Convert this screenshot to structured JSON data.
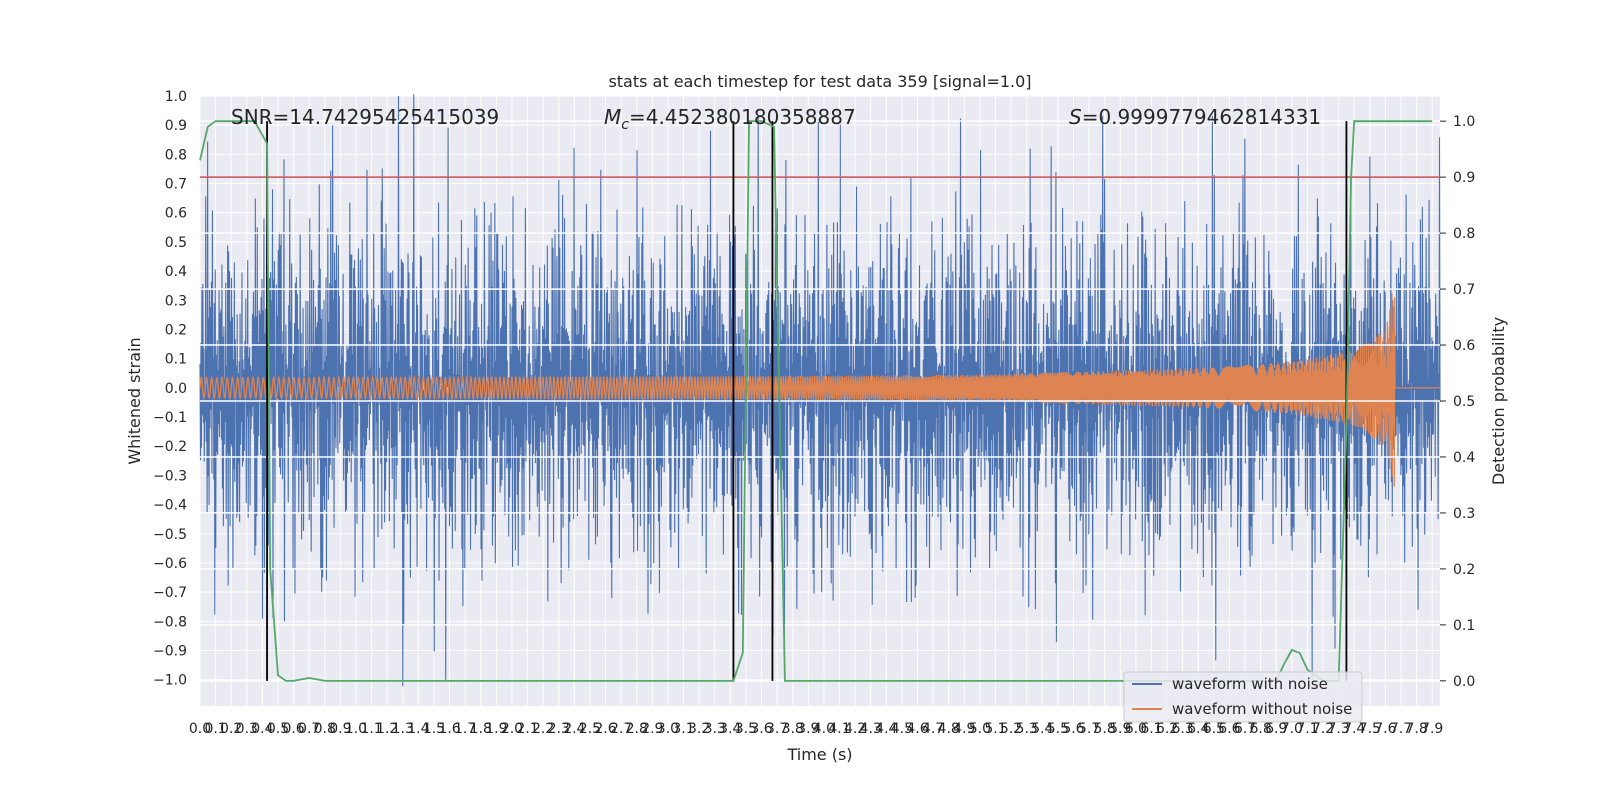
{
  "chart_data": {
    "type": "line",
    "title": "stats at each timestep for test data 359 [signal=1.0]",
    "xlabel": "Time (s)",
    "ylabel": "Whitened strain",
    "y2label": "Detection probability",
    "xlim": [
      0,
      7.95
    ],
    "ylim": [
      -1.09,
      1.0
    ],
    "y2lim": [
      -0.045,
      1.045
    ],
    "grid": true,
    "legend_position": "lower-right",
    "x_tick_labels": [
      "0.0",
      "0.1",
      "0.2",
      "0.3",
      "0.4",
      "0.5",
      "0.6",
      "0.7",
      "0.8",
      "0.9",
      "1.0",
      "1.1",
      "1.2",
      "1.3",
      "1.4",
      "1.5",
      "1.6",
      "1.7",
      "1.8",
      "1.9",
      "2.0",
      "2.1",
      "2.2",
      "2.3",
      "2.4",
      "2.5",
      "2.6",
      "2.7",
      "2.8",
      "2.9",
      "3.0",
      "3.1",
      "3.2",
      "3.3",
      "3.4",
      "3.5",
      "3.6",
      "3.7",
      "3.8",
      "3.9",
      "4.0",
      "4.1",
      "4.2",
      "4.3",
      "4.4",
      "4.5",
      "4.6",
      "4.7",
      "4.8",
      "4.9",
      "5.0",
      "5.1",
      "5.2",
      "5.3",
      "5.4",
      "5.5",
      "5.6",
      "5.7",
      "5.8",
      "5.9",
      "6.0",
      "6.1",
      "6.2",
      "6.3",
      "6.4",
      "6.5",
      "6.6",
      "6.7",
      "6.8",
      "6.9",
      "7.0",
      "7.1",
      "7.2",
      "7.3",
      "7.4",
      "7.5",
      "7.6",
      "7.7",
      "7.8",
      "7.9"
    ],
    "y_tick_labels": [
      "1.0",
      "0.9",
      "0.8",
      "0.7",
      "0.6",
      "0.5",
      "0.4",
      "0.3",
      "0.2",
      "0.1",
      "0.0",
      "−0.1",
      "−0.2",
      "−0.3",
      "−0.4",
      "−0.5",
      "−0.6",
      "−0.7",
      "−0.8",
      "−0.9",
      "−1.0"
    ],
    "y2_tick_labels": [
      "1.0",
      "0.9",
      "0.8",
      "0.7",
      "0.6",
      "0.5",
      "0.4",
      "0.3",
      "0.2",
      "0.1",
      "0.0"
    ],
    "annotations": {
      "snr": "SNR=14.74295425415039",
      "mc_symbol": "M",
      "mc_sub": "c",
      "mc_value": "=4.452380180358887",
      "s_symbol": "S",
      "s_value": "=0.9999779462814331"
    },
    "series": [
      {
        "name": "waveform with noise",
        "color": "#4c72b0",
        "axis": "left",
        "envelope": {
          "typical_abs": 0.45,
          "extremes": [
            0.92,
            -1.0
          ]
        }
      },
      {
        "name": "waveform without noise",
        "color": "#dd8452",
        "axis": "left",
        "envelope": {
          "t": [
            0.0,
            3.5,
            5.0,
            6.5,
            7.0,
            7.4,
            7.6,
            7.65,
            7.9
          ],
          "amp": [
            0.035,
            0.04,
            0.045,
            0.07,
            0.09,
            0.13,
            0.2,
            0.35,
            0.0
          ]
        }
      },
      {
        "axis": "right",
        "color": "#55a868",
        "x": [
          0.0,
          0.05,
          0.1,
          0.2,
          0.35,
          0.43,
          0.45,
          0.5,
          0.55,
          0.6,
          0.7,
          0.8,
          3.35,
          3.42,
          3.48,
          3.52,
          3.6,
          3.68,
          3.75,
          3.8,
          6.9,
          6.95,
          7.0,
          7.05,
          7.1,
          7.15,
          7.2,
          7.25,
          7.3,
          7.35,
          7.38,
          7.4,
          7.9
        ],
        "y": [
          0.93,
          0.99,
          1.0,
          1.0,
          1.0,
          0.96,
          0.2,
          0.01,
          0.0,
          0.0,
          0.005,
          0.0,
          0.0,
          0.0,
          0.05,
          1.0,
          1.0,
          0.99,
          0.0,
          0.0,
          0.0,
          0.03,
          0.055,
          0.05,
          0.02,
          0.01,
          0.0,
          0.0,
          0.0,
          0.45,
          0.9,
          1.0,
          1.0
        ]
      },
      {
        "axis": "right",
        "color": "#c44e52",
        "x": [
          0.0,
          7.95
        ],
        "y": [
          0.9,
          0.9
        ]
      }
    ],
    "event_markers_x": [
      0.43,
      3.42,
      3.67,
      7.35
    ]
  }
}
